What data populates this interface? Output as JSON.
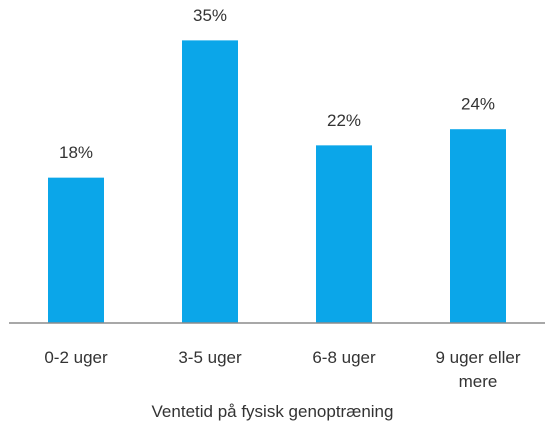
{
  "chart_data": {
    "type": "bar",
    "x_label": "Ventetid på fysisk genoptræning",
    "categories": [
      "0-2 uger",
      "3-5 uger",
      "6-8 uger",
      "9 uger eller mere"
    ],
    "values": [
      18,
      35,
      22,
      24
    ],
    "value_labels": [
      "18%",
      "35%",
      "22%",
      "24%"
    ],
    "color": "#0ba6e9",
    "ylim": [
      0,
      40
    ]
  }
}
